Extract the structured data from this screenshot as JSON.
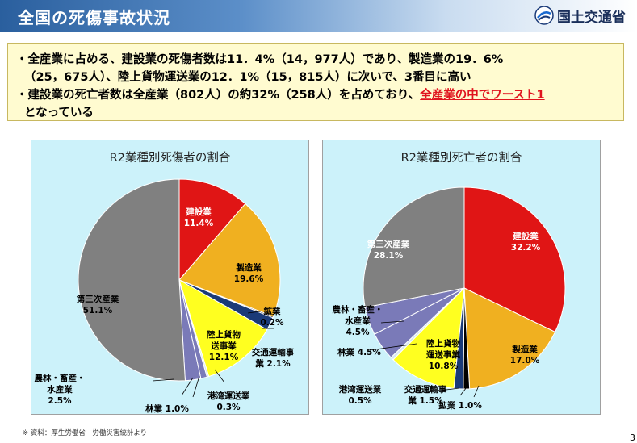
{
  "header": {
    "title": "全国の死傷事故状況",
    "org": "国土交通省"
  },
  "summary": {
    "line1": "・全産業に占める、建設業の死傷者数は11．4%（14，977人）であり、製造業の19．6%",
    "line2": "（25，675人）、陸上貨物運送業の12．1%（15，815人）に次いで、3番目に高い",
    "line3_pre": "・建設業の死亡者数は全産業（802人）の約32%（258人）を占めており、",
    "line3_hl": "全産業の中でワースト1",
    "line4": "となっている"
  },
  "colors": {
    "construction": "#e01515",
    "manufacturing": "#f0b020",
    "mining": "#000000",
    "transport": "#ffff20",
    "traffic": "#1a3a78",
    "port": "#d8e8f0",
    "forestry": "#7a7ab8",
    "agri": "#7a7ab8",
    "tertiary": "#808080"
  },
  "chart_data": [
    {
      "type": "pie",
      "title": "R2業種別死傷者の割合",
      "slices": [
        {
          "name": "建設業",
          "value": 11.4,
          "pct": "11.4%"
        },
        {
          "name": "製造業",
          "value": 19.6,
          "pct": "19.6%"
        },
        {
          "name": "鉱業",
          "value": 0.2,
          "pct": "0.2%"
        },
        {
          "name": "交通運輸事業",
          "value": 2.1,
          "pct": "2.1%"
        },
        {
          "name": "陸上貨物運送事業",
          "value": 12.1,
          "pct": "12.1%"
        },
        {
          "name": "港湾運送業",
          "value": 0.3,
          "pct": "0.3%"
        },
        {
          "name": "林業",
          "value": 1.0,
          "pct": "1.0%"
        },
        {
          "name": "農林・畜産・水産業",
          "value": 2.5,
          "pct": "2.5%"
        },
        {
          "name": "第三次産業",
          "value": 51.1,
          "pct": "51.1%"
        }
      ]
    },
    {
      "type": "pie",
      "title": "R2業種別死亡者の割合",
      "slices": [
        {
          "name": "建設業",
          "value": 32.2,
          "pct": "32.2%"
        },
        {
          "name": "製造業",
          "value": 17.0,
          "pct": "17.0%"
        },
        {
          "name": "鉱業",
          "value": 1.0,
          "pct": "1.0%"
        },
        {
          "name": "交通運輸事業",
          "value": 1.5,
          "pct": "1.5%"
        },
        {
          "name": "陸上貨物運送事業",
          "value": 10.8,
          "pct": "10.8%"
        },
        {
          "name": "港湾運送業",
          "value": 0.5,
          "pct": "0.5%"
        },
        {
          "name": "林業",
          "value": 4.5,
          "pct": "4.5%"
        },
        {
          "name": "農林・畜産・水産業",
          "value": 4.5,
          "pct": "4.5%"
        },
        {
          "name": "第三次産業",
          "value": 28.1,
          "pct": "28.1%"
        }
      ]
    }
  ],
  "labels_left": [
    {
      "lines": [
        "建設業",
        "11.4%"
      ],
      "color": "#ffffff"
    },
    {
      "lines": [
        "製造業",
        "19.6%"
      ],
      "color": "#000000"
    },
    {
      "lines": [
        "鉱業",
        "0.2%"
      ],
      "color": "#000000"
    },
    {
      "lines": [
        "交通運輸事",
        "業 2.1%"
      ],
      "color": "#000000"
    },
    {
      "lines": [
        "陸上貨物",
        "送事業",
        "12.1%"
      ],
      "color": "#000000"
    },
    {
      "lines": [
        "港湾運送業",
        "0.3%"
      ],
      "color": "#000000"
    },
    {
      "lines": [
        "林業 1.0%"
      ],
      "color": "#000000"
    },
    {
      "lines": [
        "農林・畜産・",
        "水産業",
        "2.5%"
      ],
      "color": "#000000"
    },
    {
      "lines": [
        "第三次産業",
        "51.1%"
      ],
      "color": "#000000"
    }
  ],
  "labels_right": [
    {
      "lines": [
        "建設業",
        "32.2%"
      ],
      "color": "#ffffff"
    },
    {
      "lines": [
        "製造業",
        "17.0%"
      ],
      "color": "#000000"
    },
    {
      "lines": [
        "鉱業 1.0%"
      ],
      "color": "#000000"
    },
    {
      "lines": [
        "交通運輸事",
        "業 1.5%"
      ],
      "color": "#000000"
    },
    {
      "lines": [
        "陸上貨物",
        "運送事業",
        "10.8%"
      ],
      "color": "#000000"
    },
    {
      "lines": [
        "港湾運送業",
        "0.5%"
      ],
      "color": "#000000"
    },
    {
      "lines": [
        "林業 4.5%"
      ],
      "color": "#000000"
    },
    {
      "lines": [
        "農林・畜産・",
        "水産業",
        "4.5%"
      ],
      "color": "#000000"
    },
    {
      "lines": [
        "第三次産業",
        "28.1%"
      ],
      "color": "#ffffff"
    }
  ],
  "footer": {
    "source": "※ 資料：厚生労働省　労働災害統計より",
    "page": "3"
  }
}
